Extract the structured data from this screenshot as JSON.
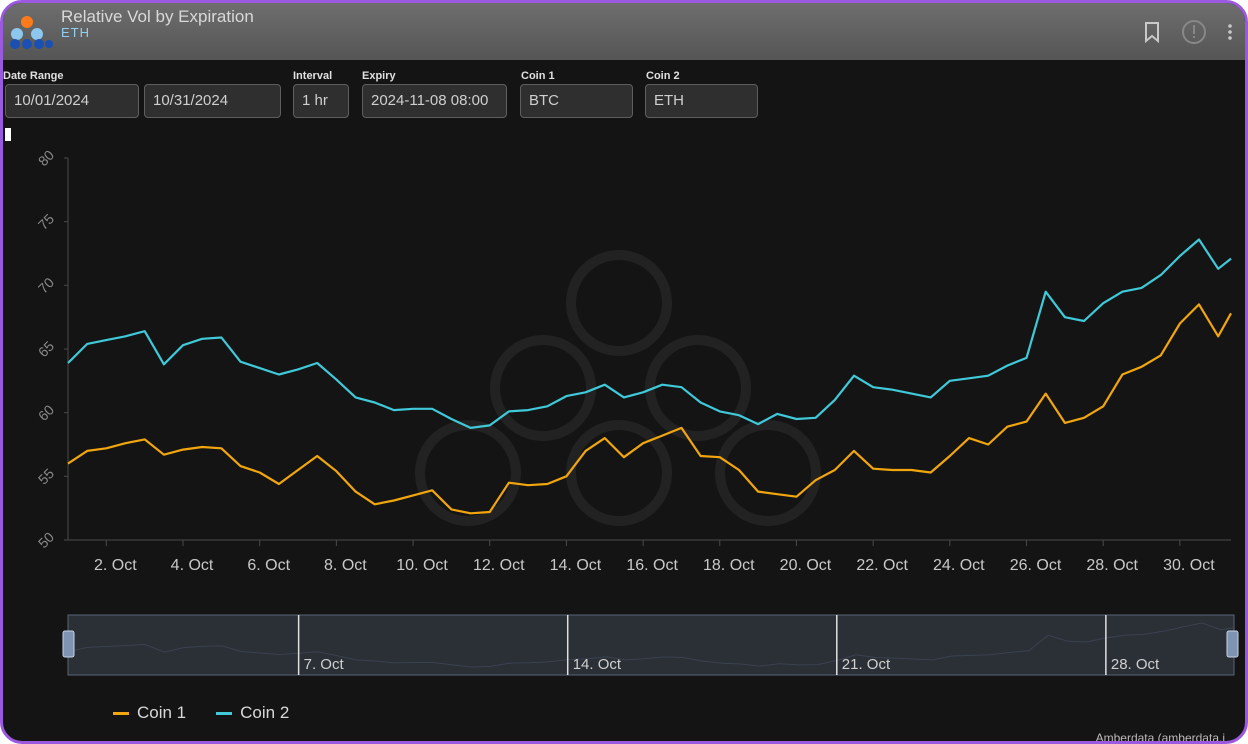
{
  "header": {
    "title": "Relative Vol by Expiration",
    "subtitle": "ETH",
    "icons": [
      "bookmark-icon",
      "info-icon",
      "more-vert-icon"
    ]
  },
  "controls": {
    "date_range_label": "Date Range",
    "date_start": "10/01/2024",
    "date_end": "10/31/2024",
    "interval_label": "Interval",
    "interval": "1 hr",
    "expiry_label": "Expiry",
    "expiry": "2024-11-08 08:00",
    "coin1_label": "Coin 1",
    "coin1": "BTC",
    "coin2_label": "Coin 2",
    "coin2": "ETH"
  },
  "colors": {
    "coin1": "#f2a60d",
    "coin2": "#3fc9d9",
    "background": "#141414",
    "grid": "#333333"
  },
  "chart_data": {
    "type": "line",
    "x_type": "date",
    "xlim": [
      "2024-10-01",
      "2024-10-31"
    ],
    "ylim": [
      50,
      80
    ],
    "yticks": [
      50,
      55,
      60,
      65,
      70,
      75,
      80
    ],
    "xticks": [
      {
        "date": "2024-10-02",
        "label": "2. Oct"
      },
      {
        "date": "2024-10-04",
        "label": "4. Oct"
      },
      {
        "date": "2024-10-06",
        "label": "6. Oct"
      },
      {
        "date": "2024-10-08",
        "label": "8. Oct"
      },
      {
        "date": "2024-10-10",
        "label": "10. Oct"
      },
      {
        "date": "2024-10-12",
        "label": "12. Oct"
      },
      {
        "date": "2024-10-14",
        "label": "14. Oct"
      },
      {
        "date": "2024-10-16",
        "label": "16. Oct"
      },
      {
        "date": "2024-10-18",
        "label": "18. Oct"
      },
      {
        "date": "2024-10-20",
        "label": "20. Oct"
      },
      {
        "date": "2024-10-22",
        "label": "22. Oct"
      },
      {
        "date": "2024-10-24",
        "label": "24. Oct"
      },
      {
        "date": "2024-10-26",
        "label": "26. Oct"
      },
      {
        "date": "2024-10-28",
        "label": "28. Oct"
      },
      {
        "date": "2024-10-30",
        "label": "30. Oct"
      }
    ],
    "x": [
      "2024-10-01 00:00",
      "2024-10-01 12:00",
      "2024-10-02 00:00",
      "2024-10-02 12:00",
      "2024-10-03 00:00",
      "2024-10-03 12:00",
      "2024-10-04 00:00",
      "2024-10-04 12:00",
      "2024-10-05 00:00",
      "2024-10-05 12:00",
      "2024-10-06 00:00",
      "2024-10-06 12:00",
      "2024-10-07 00:00",
      "2024-10-07 12:00",
      "2024-10-08 00:00",
      "2024-10-08 12:00",
      "2024-10-09 00:00",
      "2024-10-09 12:00",
      "2024-10-10 00:00",
      "2024-10-10 12:00",
      "2024-10-11 00:00",
      "2024-10-11 12:00",
      "2024-10-12 00:00",
      "2024-10-12 12:00",
      "2024-10-13 00:00",
      "2024-10-13 12:00",
      "2024-10-14 00:00",
      "2024-10-14 12:00",
      "2024-10-15 00:00",
      "2024-10-15 12:00",
      "2024-10-16 00:00",
      "2024-10-16 12:00",
      "2024-10-17 00:00",
      "2024-10-17 12:00",
      "2024-10-18 00:00",
      "2024-10-18 12:00",
      "2024-10-19 00:00",
      "2024-10-19 12:00",
      "2024-10-20 00:00",
      "2024-10-20 12:00",
      "2024-10-21 00:00",
      "2024-10-21 12:00",
      "2024-10-22 00:00",
      "2024-10-22 12:00",
      "2024-10-23 00:00",
      "2024-10-23 12:00",
      "2024-10-24 00:00",
      "2024-10-24 12:00",
      "2024-10-25 00:00",
      "2024-10-25 12:00",
      "2024-10-26 00:00",
      "2024-10-26 12:00",
      "2024-10-27 00:00",
      "2024-10-27 12:00",
      "2024-10-28 00:00",
      "2024-10-28 12:00",
      "2024-10-29 00:00",
      "2024-10-29 12:00",
      "2024-10-30 00:00",
      "2024-10-30 12:00",
      "2024-10-31 00:00",
      "2024-10-31 08:00"
    ],
    "series": [
      {
        "name": "Coin 1",
        "color": "#f2a60d",
        "values": [
          56.0,
          57.0,
          57.2,
          57.6,
          57.9,
          56.7,
          57.1,
          57.3,
          57.2,
          55.8,
          55.3,
          54.4,
          55.5,
          56.6,
          55.4,
          53.8,
          52.8,
          53.1,
          53.5,
          53.9,
          52.4,
          52.1,
          52.2,
          54.5,
          54.3,
          54.4,
          55.0,
          57.0,
          58.0,
          56.5,
          57.6,
          58.2,
          58.8,
          56.6,
          56.5,
          55.5,
          53.8,
          53.6,
          53.4,
          54.7,
          55.5,
          57.0,
          55.6,
          55.5,
          55.5,
          55.3,
          56.6,
          58.0,
          57.5,
          58.9,
          59.3,
          61.5,
          59.2,
          59.6,
          60.5,
          63.0,
          63.6,
          64.5,
          67.0,
          68.5,
          66.0,
          67.8
        ]
      },
      {
        "name": "Coin 2",
        "color": "#3fc9d9",
        "values": [
          63.9,
          65.4,
          65.7,
          66.0,
          66.4,
          63.8,
          65.3,
          65.8,
          65.9,
          64.0,
          63.5,
          63.0,
          63.4,
          63.9,
          62.6,
          61.2,
          60.8,
          60.2,
          60.3,
          60.3,
          59.5,
          58.8,
          59.0,
          60.1,
          60.2,
          60.5,
          61.3,
          61.6,
          62.2,
          61.2,
          61.6,
          62.2,
          62.0,
          60.8,
          60.1,
          59.8,
          59.1,
          59.9,
          59.5,
          59.6,
          61.0,
          62.9,
          62.0,
          61.8,
          61.5,
          61.2,
          62.5,
          62.7,
          62.9,
          63.7,
          64.3,
          69.5,
          67.5,
          67.2,
          68.6,
          69.5,
          69.8,
          70.8,
          72.3,
          73.6,
          71.3,
          72.1
        ]
      }
    ]
  },
  "navigator": {
    "labels": [
      "7. Oct",
      "14. Oct",
      "21. Oct",
      "28. Oct"
    ]
  },
  "legend": {
    "coin1_label": "Coin 1",
    "coin2_label": "Coin 2"
  },
  "credit": "Amberdata (amberdata.i"
}
